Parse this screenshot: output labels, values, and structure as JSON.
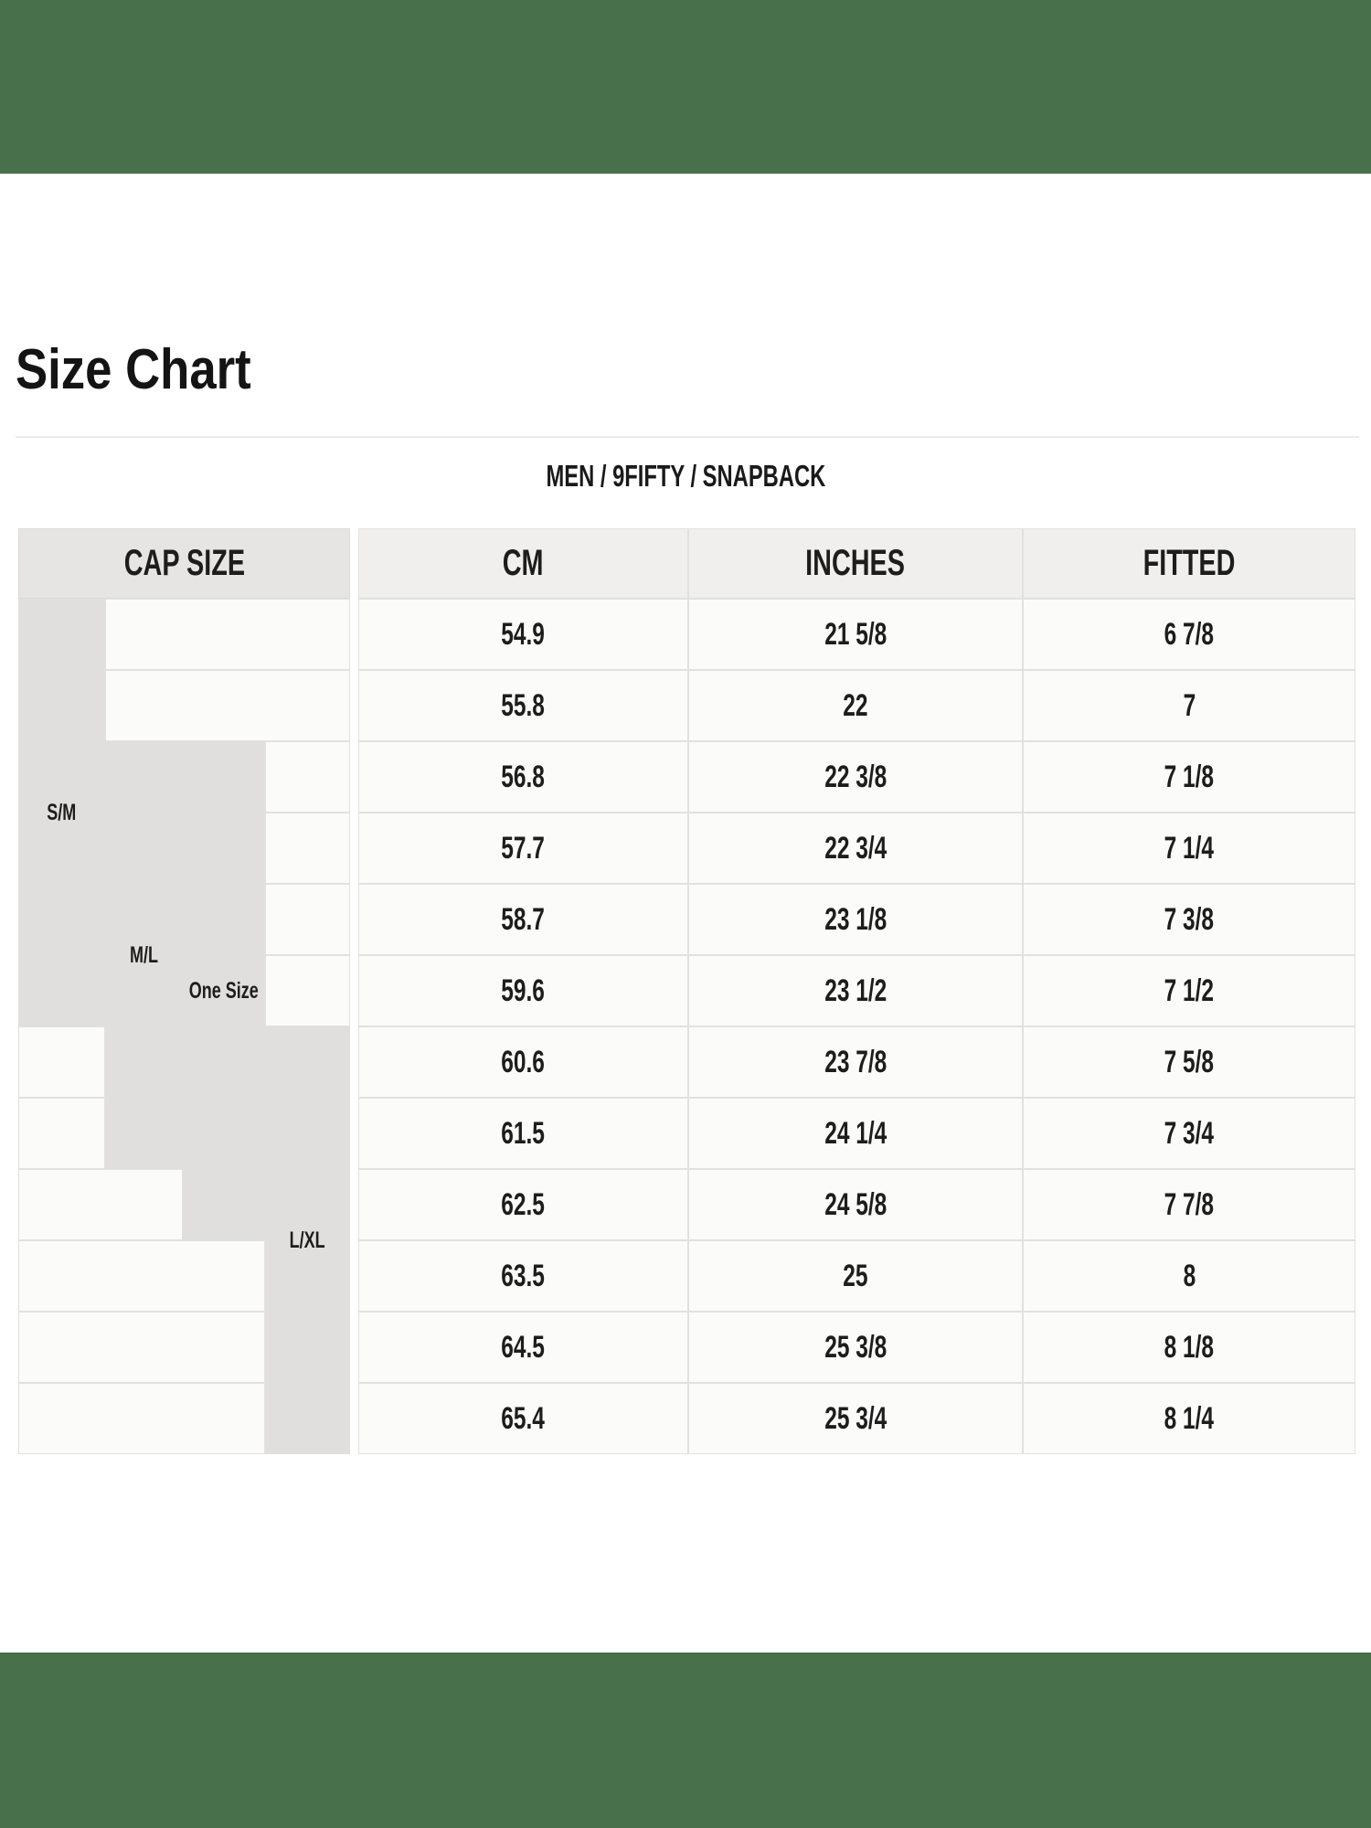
{
  "banner": {
    "color": "#47704b"
  },
  "header": {
    "title": "Size Chart",
    "subtitle": "MEN / 9FIFTY / SNAPBACK"
  },
  "table": {
    "column_headers": {
      "cap_size": "CAP SIZE",
      "cm": "CM",
      "inches": "INCHES",
      "fitted": "FITTED"
    },
    "cap_size_groups": [
      {
        "label": "S/M"
      },
      {
        "label": "M/L"
      },
      {
        "label": "One Size"
      },
      {
        "label": "L/XL"
      }
    ],
    "rows": [
      {
        "cm": "54.9",
        "inches": "21 5/8",
        "fitted": "6 7/8"
      },
      {
        "cm": "55.8",
        "inches": "22",
        "fitted": "7"
      },
      {
        "cm": "56.8",
        "inches": "22 3/8",
        "fitted": "7 1/8"
      },
      {
        "cm": "57.7",
        "inches": "22 3/4",
        "fitted": "7 1/4"
      },
      {
        "cm": "58.7",
        "inches": "23 1/8",
        "fitted": "7 3/8"
      },
      {
        "cm": "59.6",
        "inches": "23 1/2",
        "fitted": "7 1/2"
      },
      {
        "cm": "60.6",
        "inches": "23 7/8",
        "fitted": "7 5/8"
      },
      {
        "cm": "61.5",
        "inches": "24 1/4",
        "fitted": "7 3/4"
      },
      {
        "cm": "62.5",
        "inches": "24 5/8",
        "fitted": "7 7/8"
      },
      {
        "cm": "63.5",
        "inches": "25",
        "fitted": "8"
      },
      {
        "cm": "64.5",
        "inches": "25 3/8",
        "fitted": "8 1/8"
      },
      {
        "cm": "65.4",
        "inches": "25 3/4",
        "fitted": "8 1/4"
      }
    ]
  }
}
